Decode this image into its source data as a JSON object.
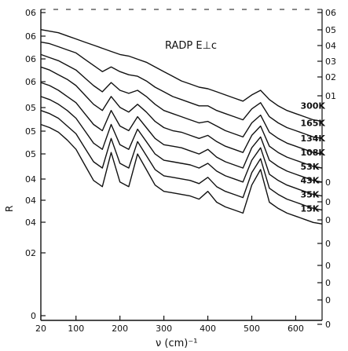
{
  "chart_data": {
    "type": "line",
    "title": "RADP E⊥c",
    "xlabel": "ν (cm)⁻¹",
    "ylabel": "R",
    "xlim": [
      20,
      660
    ],
    "ylim": [
      0,
      1
    ],
    "x_ticks": [
      "20",
      "100",
      "200",
      "300",
      "400",
      "500",
      "600"
    ],
    "y_ticks_left": [
      "0",
      "02",
      "04",
      "04",
      "04",
      "05",
      "05",
      "05",
      "06",
      "06",
      "06",
      "06"
    ],
    "y_ticks_right": [
      "0",
      "0",
      "0",
      "0",
      "0",
      "0",
      "0",
      "0",
      "01",
      "02",
      "03",
      "04",
      "05",
      "06"
    ],
    "grid": false,
    "series": [
      {
        "name": "300K",
        "x": [
          20,
          40,
          60,
          80,
          100,
          120,
          140,
          160,
          180,
          200,
          220,
          240,
          260,
          280,
          300,
          320,
          340,
          360,
          380,
          400,
          420,
          440,
          460,
          480,
          500,
          520,
          540,
          560,
          580,
          600,
          620,
          640,
          660
        ],
        "y": [
          0.935,
          0.93,
          0.925,
          0.915,
          0.905,
          0.895,
          0.885,
          0.875,
          0.865,
          0.855,
          0.85,
          0.84,
          0.83,
          0.815,
          0.8,
          0.785,
          0.77,
          0.76,
          0.75,
          0.745,
          0.735,
          0.725,
          0.715,
          0.705,
          0.725,
          0.74,
          0.71,
          0.69,
          0.675,
          0.665,
          0.655,
          0.645,
          0.64
        ]
      },
      {
        "name": "165K",
        "x": [
          20,
          40,
          60,
          80,
          100,
          120,
          140,
          160,
          180,
          200,
          220,
          240,
          260,
          280,
          300,
          320,
          340,
          360,
          380,
          400,
          420,
          440,
          460,
          480,
          500,
          520,
          540,
          560,
          580,
          600,
          620,
          640,
          660
        ],
        "y": [
          0.895,
          0.89,
          0.88,
          0.87,
          0.86,
          0.84,
          0.82,
          0.8,
          0.815,
          0.8,
          0.79,
          0.785,
          0.77,
          0.75,
          0.735,
          0.72,
          0.71,
          0.7,
          0.69,
          0.69,
          0.675,
          0.665,
          0.655,
          0.645,
          0.68,
          0.7,
          0.655,
          0.635,
          0.62,
          0.61,
          0.6,
          0.59,
          0.585
        ]
      },
      {
        "name": "134K",
        "x": [
          20,
          40,
          60,
          80,
          100,
          120,
          140,
          160,
          180,
          200,
          220,
          240,
          260,
          280,
          300,
          320,
          340,
          360,
          380,
          400,
          420,
          440,
          460,
          480,
          500,
          520,
          540,
          560,
          580,
          600,
          620,
          640,
          660
        ],
        "y": [
          0.855,
          0.845,
          0.835,
          0.82,
          0.805,
          0.78,
          0.755,
          0.735,
          0.765,
          0.74,
          0.73,
          0.74,
          0.72,
          0.695,
          0.675,
          0.665,
          0.655,
          0.645,
          0.635,
          0.64,
          0.625,
          0.61,
          0.6,
          0.59,
          0.635,
          0.66,
          0.605,
          0.585,
          0.57,
          0.56,
          0.55,
          0.54,
          0.535
        ]
      },
      {
        "name": "108K",
        "x": [
          20,
          40,
          60,
          80,
          100,
          120,
          140,
          160,
          180,
          200,
          220,
          240,
          260,
          280,
          300,
          320,
          340,
          360,
          380,
          400,
          420,
          440,
          460,
          480,
          500,
          520,
          540,
          560,
          580,
          600,
          620,
          640,
          660
        ],
        "y": [
          0.815,
          0.805,
          0.79,
          0.775,
          0.755,
          0.725,
          0.695,
          0.675,
          0.72,
          0.685,
          0.67,
          0.695,
          0.67,
          0.64,
          0.62,
          0.61,
          0.605,
          0.595,
          0.585,
          0.595,
          0.575,
          0.56,
          0.55,
          0.54,
          0.595,
          0.625,
          0.56,
          0.54,
          0.525,
          0.515,
          0.505,
          0.495,
          0.49
        ]
      },
      {
        "name": "53K",
        "x": [
          20,
          40,
          60,
          80,
          100,
          120,
          140,
          160,
          180,
          200,
          220,
          240,
          260,
          280,
          300,
          320,
          340,
          360,
          380,
          400,
          420,
          440,
          460,
          480,
          500,
          520,
          540,
          560,
          580,
          600,
          620,
          640,
          660
        ],
        "y": [
          0.765,
          0.755,
          0.74,
          0.72,
          0.7,
          0.665,
          0.63,
          0.61,
          0.675,
          0.625,
          0.61,
          0.655,
          0.62,
          0.585,
          0.565,
          0.56,
          0.555,
          0.545,
          0.535,
          0.55,
          0.525,
          0.51,
          0.5,
          0.49,
          0.555,
          0.59,
          0.515,
          0.495,
          0.48,
          0.47,
          0.46,
          0.45,
          0.445
        ]
      },
      {
        "name": "43K",
        "x": [
          20,
          40,
          60,
          80,
          100,
          120,
          140,
          160,
          180,
          200,
          220,
          240,
          260,
          280,
          300,
          320,
          340,
          360,
          380,
          400,
          420,
          440,
          460,
          480,
          500,
          520,
          540,
          560,
          580,
          600,
          620,
          640,
          660
        ],
        "y": [
          0.72,
          0.71,
          0.695,
          0.675,
          0.65,
          0.61,
          0.57,
          0.55,
          0.63,
          0.565,
          0.55,
          0.615,
          0.575,
          0.535,
          0.515,
          0.51,
          0.505,
          0.5,
          0.49,
          0.505,
          0.48,
          0.465,
          0.455,
          0.445,
          0.515,
          0.555,
          0.47,
          0.45,
          0.435,
          0.425,
          0.415,
          0.405,
          0.4
        ]
      },
      {
        "name": "35K",
        "x": [
          20,
          40,
          60,
          80,
          100,
          120,
          140,
          160,
          180,
          200,
          220,
          240,
          260,
          280,
          300,
          320,
          340,
          360,
          380,
          400,
          420,
          440,
          460,
          480,
          500,
          520,
          540,
          560,
          580,
          600,
          620,
          640,
          660
        ],
        "y": [
          0.675,
          0.665,
          0.65,
          0.625,
          0.6,
          0.555,
          0.51,
          0.49,
          0.585,
          0.505,
          0.49,
          0.575,
          0.53,
          0.485,
          0.465,
          0.46,
          0.455,
          0.45,
          0.44,
          0.46,
          0.43,
          0.415,
          0.405,
          0.395,
          0.475,
          0.52,
          0.425,
          0.405,
          0.39,
          0.38,
          0.37,
          0.36,
          0.355
        ]
      },
      {
        "name": "15K",
        "x": [
          20,
          40,
          60,
          80,
          100,
          120,
          140,
          160,
          180,
          200,
          220,
          240,
          260,
          280,
          300,
          320,
          340,
          360,
          380,
          400,
          420,
          440,
          460,
          480,
          500,
          520,
          540,
          560,
          580,
          600,
          620,
          640,
          660
        ],
        "y": [
          0.63,
          0.62,
          0.605,
          0.58,
          0.55,
          0.5,
          0.45,
          0.43,
          0.54,
          0.445,
          0.43,
          0.535,
          0.485,
          0.435,
          0.415,
          0.41,
          0.405,
          0.4,
          0.39,
          0.415,
          0.38,
          0.365,
          0.355,
          0.345,
          0.435,
          0.485,
          0.38,
          0.36,
          0.345,
          0.335,
          0.325,
          0.315,
          0.31
        ]
      }
    ]
  }
}
